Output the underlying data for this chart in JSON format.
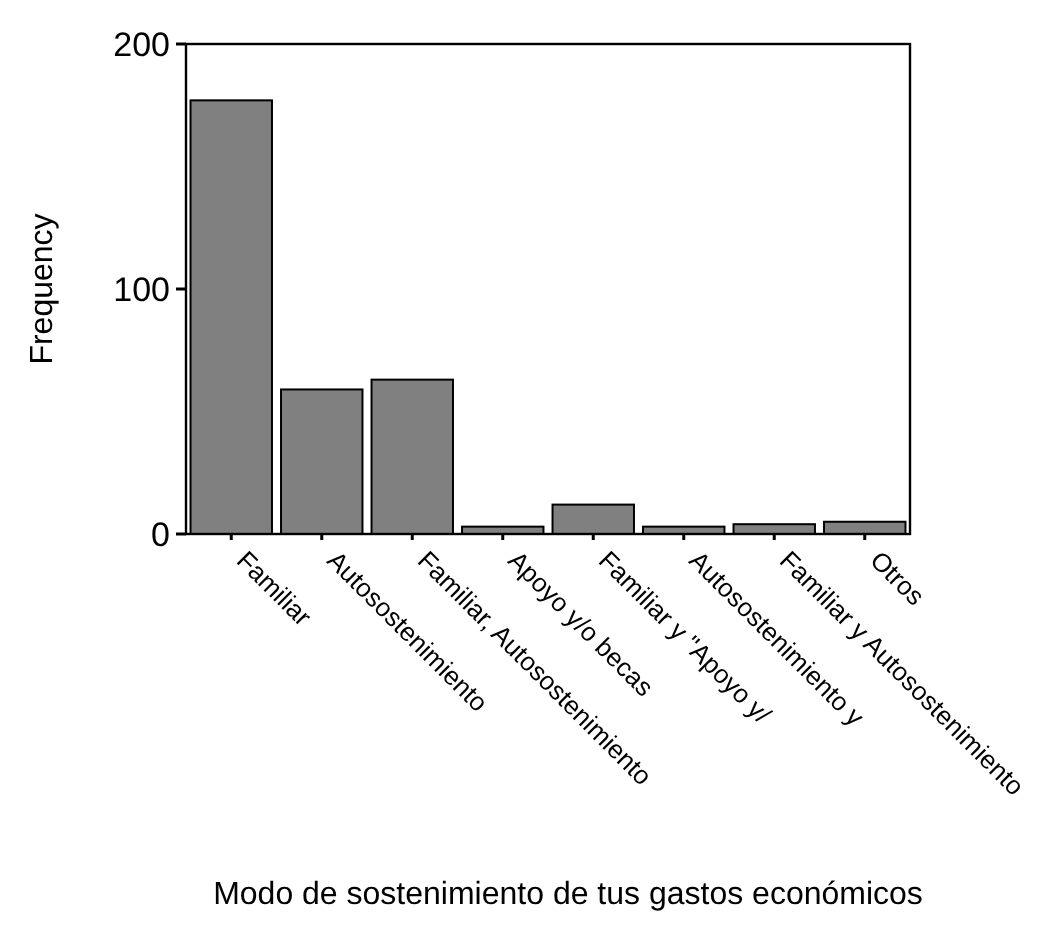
{
  "chart_data": {
    "type": "bar",
    "xlabel": "Modo de sostenimiento de tus gastos económicos",
    "ylabel": "Frequency",
    "categories": [
      "Familiar",
      "Autosostenimiento",
      "Familiar, Autosostenimiento",
      "Apoyo y/o becas",
      "Familiar y \"Apoyo y/",
      "Autosostenimiento y",
      "Familiar y Autosostenimiento",
      "Otros"
    ],
    "values": [
      177,
      59,
      63,
      3,
      12,
      3,
      4,
      5
    ],
    "color": "#808080",
    "ylim": [
      0,
      200
    ],
    "yticks": [
      0,
      100,
      200
    ],
    "grid": false
  }
}
